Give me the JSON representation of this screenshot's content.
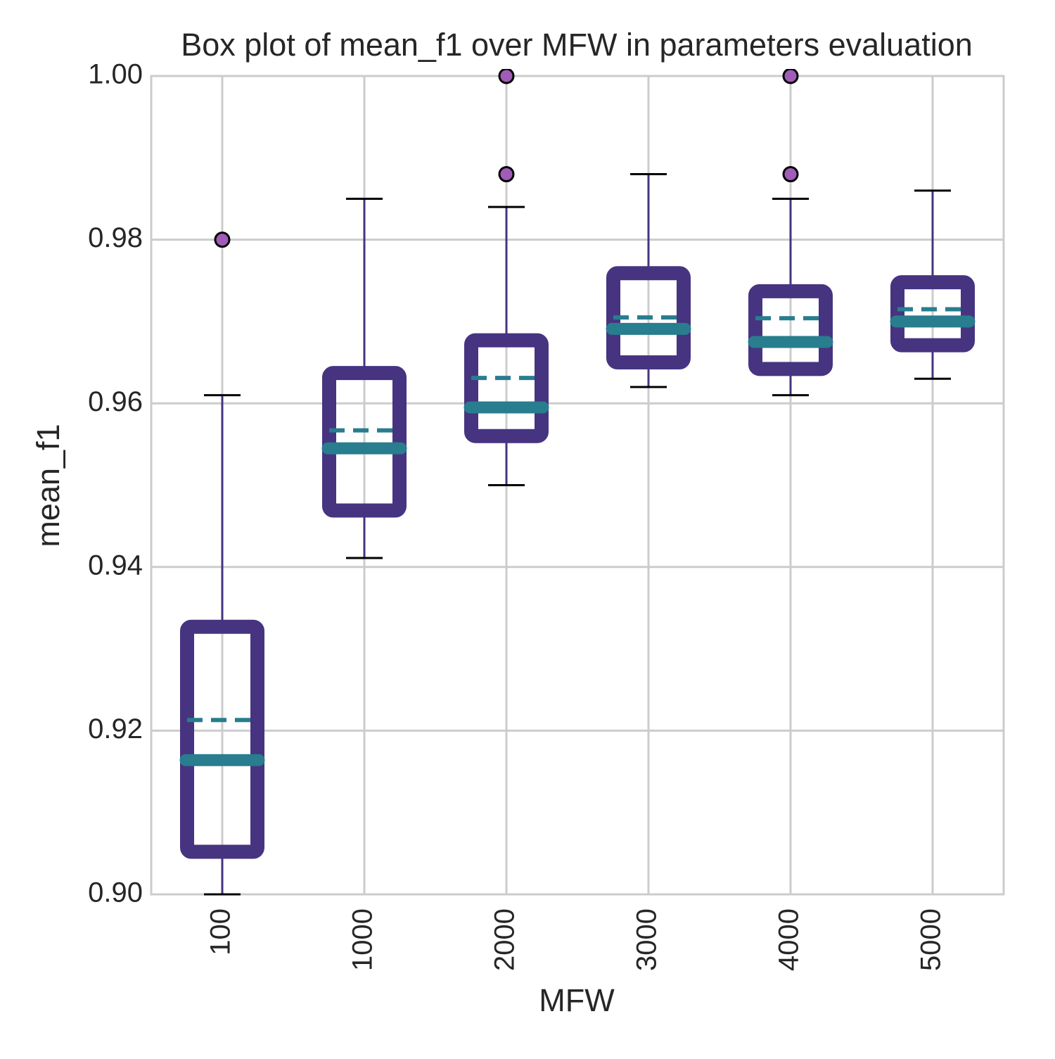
{
  "chart_data": {
    "type": "box",
    "title": "Box plot of mean_f1 over MFW in parameters evaluation",
    "x_label": "MFW",
    "y_label": "mean_f1",
    "categories": [
      "100",
      "1000",
      "2000",
      "3000",
      "4000",
      "5000"
    ],
    "boxes": [
      {
        "whislo": 0.9,
        "q1": 0.9052,
        "med": 0.9164,
        "mean": 0.9213,
        "q3": 0.9327,
        "whishi": 0.961,
        "fliers": [
          0.98
        ]
      },
      {
        "whislo": 0.9411,
        "q1": 0.9469,
        "med": 0.9545,
        "mean": 0.9567,
        "q3": 0.9637,
        "whishi": 0.985,
        "fliers": []
      },
      {
        "whislo": 0.95,
        "q1": 0.956,
        "med": 0.9595,
        "mean": 0.9631,
        "q3": 0.9677,
        "whishi": 0.984,
        "fliers": [
          0.988,
          1.0
        ]
      },
      {
        "whislo": 0.962,
        "q1": 0.965,
        "med": 0.9691,
        "mean": 0.9705,
        "q3": 0.9759,
        "whishi": 0.988,
        "fliers": []
      },
      {
        "whislo": 0.961,
        "q1": 0.9642,
        "med": 0.9675,
        "mean": 0.9704,
        "q3": 0.9737,
        "whishi": 0.985,
        "fliers": [
          0.988,
          1.0
        ]
      },
      {
        "whislo": 0.963,
        "q1": 0.9671,
        "med": 0.97,
        "mean": 0.9715,
        "q3": 0.9748,
        "whishi": 0.986,
        "fliers": []
      }
    ],
    "ylim": [
      0.9,
      1.0
    ],
    "yticks": [
      {
        "value": 0.9,
        "label": "0.90"
      },
      0.92,
      0.94,
      0.96,
      0.98,
      {
        "value": 1.0,
        "label": "1.00"
      }
    ],
    "grid": true,
    "box_color": "#463480",
    "median_color": "#287d8e",
    "mean_color": "#287d8e",
    "flier_color": "#a05cb8",
    "cap_color": "#000000"
  }
}
